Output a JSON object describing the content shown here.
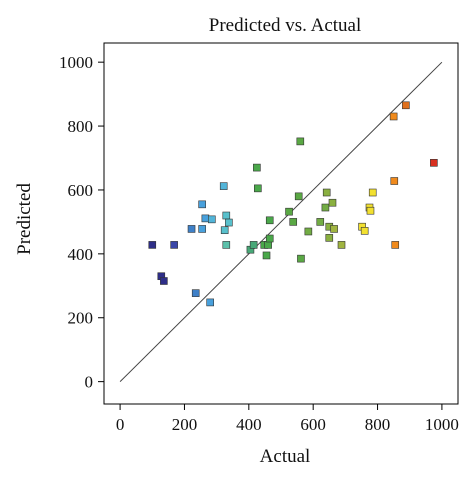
{
  "chart_data": {
    "type": "scatter",
    "title": "Predicted vs. Actual",
    "xlabel": "Actual",
    "ylabel": "Predicted",
    "xlim": [
      -50,
      1050
    ],
    "ylim": [
      -70,
      1060
    ],
    "xticks": [
      0,
      200,
      400,
      600,
      800,
      1000
    ],
    "yticks": [
      0,
      200,
      400,
      600,
      800,
      1000
    ],
    "reference_line": {
      "from": [
        0,
        0
      ],
      "to": [
        1000,
        1000
      ]
    },
    "grid": false,
    "points": [
      {
        "x": 100,
        "y": 428,
        "color": "#2e2e88"
      },
      {
        "x": 128,
        "y": 330,
        "color": "#2e2e88"
      },
      {
        "x": 136,
        "y": 315,
        "color": "#2e2e88"
      },
      {
        "x": 168,
        "y": 428,
        "color": "#3a46a8"
      },
      {
        "x": 222,
        "y": 478,
        "color": "#3e80c8"
      },
      {
        "x": 235,
        "y": 277,
        "color": "#3e80c8"
      },
      {
        "x": 255,
        "y": 555,
        "color": "#48a0dc"
      },
      {
        "x": 255,
        "y": 478,
        "color": "#48a0dc"
      },
      {
        "x": 265,
        "y": 511,
        "color": "#48a0dc"
      },
      {
        "x": 280,
        "y": 248,
        "color": "#48a0dc"
      },
      {
        "x": 285,
        "y": 508,
        "color": "#52b4d8"
      },
      {
        "x": 322,
        "y": 612,
        "color": "#52b4d8"
      },
      {
        "x": 325,
        "y": 474,
        "color": "#58c0cc"
      },
      {
        "x": 330,
        "y": 520,
        "color": "#58c0cc"
      },
      {
        "x": 338,
        "y": 498,
        "color": "#58c0cc"
      },
      {
        "x": 330,
        "y": 428,
        "color": "#5cc0aa"
      },
      {
        "x": 405,
        "y": 413,
        "color": "#48a878"
      },
      {
        "x": 415,
        "y": 428,
        "color": "#48a878"
      },
      {
        "x": 425,
        "y": 670,
        "color": "#4aa84a"
      },
      {
        "x": 428,
        "y": 605,
        "color": "#4aa84a"
      },
      {
        "x": 448,
        "y": 428,
        "color": "#4aa84a"
      },
      {
        "x": 455,
        "y": 395,
        "color": "#4aa84a"
      },
      {
        "x": 460,
        "y": 428,
        "color": "#4aa84a"
      },
      {
        "x": 465,
        "y": 448,
        "color": "#4aa84a"
      },
      {
        "x": 465,
        "y": 505,
        "color": "#4aa84a"
      },
      {
        "x": 525,
        "y": 532,
        "color": "#5aa844"
      },
      {
        "x": 538,
        "y": 500,
        "color": "#5aa844"
      },
      {
        "x": 555,
        "y": 580,
        "color": "#5aa844"
      },
      {
        "x": 560,
        "y": 752,
        "color": "#5aa844"
      },
      {
        "x": 562,
        "y": 385,
        "color": "#5aa844"
      },
      {
        "x": 585,
        "y": 470,
        "color": "#72ac44"
      },
      {
        "x": 622,
        "y": 500,
        "color": "#72ac44"
      },
      {
        "x": 638,
        "y": 545,
        "color": "#72ac44"
      },
      {
        "x": 642,
        "y": 592,
        "color": "#8ab040"
      },
      {
        "x": 650,
        "y": 485,
        "color": "#8ab040"
      },
      {
        "x": 650,
        "y": 450,
        "color": "#8ab040"
      },
      {
        "x": 660,
        "y": 560,
        "color": "#8ab040"
      },
      {
        "x": 665,
        "y": 478,
        "color": "#a0b440"
      },
      {
        "x": 688,
        "y": 428,
        "color": "#a0b440"
      },
      {
        "x": 752,
        "y": 485,
        "color": "#f2e030"
      },
      {
        "x": 760,
        "y": 472,
        "color": "#f2e030"
      },
      {
        "x": 775,
        "y": 545,
        "color": "#f2e030"
      },
      {
        "x": 778,
        "y": 535,
        "color": "#f2e030"
      },
      {
        "x": 785,
        "y": 592,
        "color": "#f2e030"
      },
      {
        "x": 850,
        "y": 830,
        "color": "#f08a1c"
      },
      {
        "x": 852,
        "y": 628,
        "color": "#f08a1c"
      },
      {
        "x": 855,
        "y": 428,
        "color": "#f08a1c"
      },
      {
        "x": 888,
        "y": 865,
        "color": "#e0701c"
      },
      {
        "x": 975,
        "y": 685,
        "color": "#d83020"
      }
    ]
  }
}
